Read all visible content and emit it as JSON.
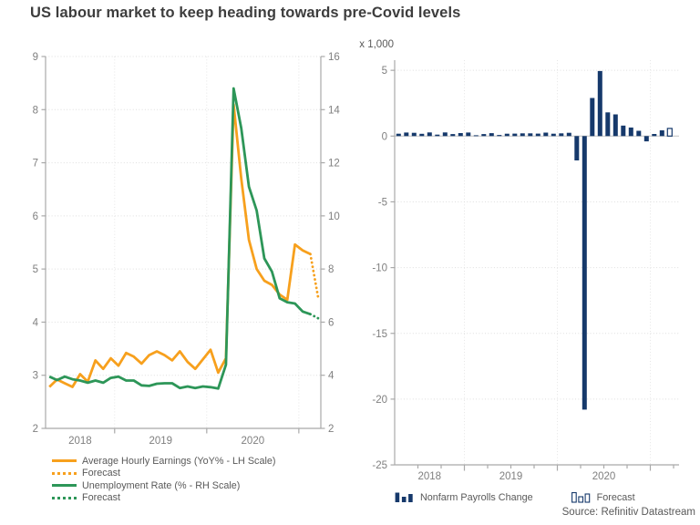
{
  "title": "US labour market to keep heading towards pre-Covid levels",
  "source_note": "Source: Refinitiv Datastream",
  "colors": {
    "orange": "#F7A01D",
    "green": "#2D9658",
    "navy": "#16396B",
    "axis": "#A9A9A9",
    "grid": "#DEDEDE",
    "tick_label": "#7F7F7F",
    "legend_text": "#595959",
    "title_text": "#3D3D3D"
  },
  "chart_data": [
    {
      "type": "line",
      "name": "earnings-unemployment-lines",
      "x_start": "2018-04",
      "x_months": 36,
      "x_year_labels": [
        "2018",
        "2019",
        "2020"
      ],
      "year_boundary_month_indices": [
        9,
        21,
        33
      ],
      "lh_axis": {
        "min": 2,
        "max": 9,
        "tick_labels": [
          "9",
          "8",
          "7",
          "6",
          "5",
          "4",
          "3",
          "2"
        ]
      },
      "rh_axis": {
        "min": 2,
        "max": 16,
        "tick_labels": [
          "16",
          "14",
          "12",
          "10",
          "8",
          "6",
          "4",
          "2"
        ]
      },
      "grid": true,
      "series": [
        {
          "name": "Average Hourly Earnings (YoY% - LH Scale)",
          "color": "orange",
          "style": "solid",
          "axis": "lh",
          "values": [
            2.78,
            2.92,
            2.85,
            2.78,
            3.02,
            2.88,
            3.28,
            3.12,
            3.32,
            3.18,
            3.42,
            3.35,
            3.22,
            3.38,
            3.45,
            3.38,
            3.28,
            3.45,
            3.25,
            3.12,
            3.3,
            3.48,
            3.05,
            3.32,
            8.1,
            6.7,
            5.55,
            5.0,
            4.78,
            4.7,
            4.52,
            4.42,
            5.46,
            5.35,
            5.28
          ]
        },
        {
          "name": "Forecast",
          "color": "orange",
          "style": "dotted",
          "axis": "lh",
          "start_index": 34,
          "values": [
            5.28,
            4.48
          ]
        },
        {
          "name": "Unemployment Rate (% - RH Scale)",
          "color": "green",
          "style": "solid",
          "axis": "rh",
          "values": [
            3.95,
            3.82,
            3.95,
            3.85,
            3.8,
            3.72,
            3.8,
            3.72,
            3.9,
            3.95,
            3.8,
            3.8,
            3.62,
            3.6,
            3.68,
            3.7,
            3.7,
            3.52,
            3.58,
            3.52,
            3.58,
            3.55,
            3.5,
            4.4,
            14.8,
            13.3,
            11.1,
            10.2,
            8.4,
            7.9,
            6.9,
            6.75,
            6.7,
            6.4,
            6.3
          ]
        },
        {
          "name": "Forecast",
          "color": "green",
          "style": "dotted",
          "axis": "rh",
          "start_index": 34,
          "values": [
            6.3,
            6.15
          ]
        }
      ],
      "legend": [
        {
          "label": "Average Hourly Earnings (YoY% - LH Scale)",
          "color": "orange",
          "style": "solid"
        },
        {
          "label": "Forecast",
          "color": "orange",
          "style": "dotted"
        },
        {
          "label": "Unemployment Rate (% - RH Scale)",
          "color": "green",
          "style": "solid"
        },
        {
          "label": "Forecast",
          "color": "green",
          "style": "dotted"
        }
      ]
    },
    {
      "type": "bar",
      "name": "nonfarm-payrolls-bars",
      "unit_label": "x 1,000",
      "x_start": "2018-04",
      "x_months": 36,
      "x_year_labels": [
        "2018",
        "2019",
        "2020"
      ],
      "year_boundary_month_indices": [
        9,
        21,
        33
      ],
      "y_axis": {
        "min": -25,
        "max": 5,
        "tick_step": 5,
        "tick_labels": [
          "5",
          "0",
          "-5",
          "-10",
          "-15",
          "-20",
          "-25"
        ]
      },
      "values": [
        0.18,
        0.27,
        0.25,
        0.17,
        0.28,
        0.11,
        0.28,
        0.15,
        0.23,
        0.27,
        0.06,
        0.15,
        0.22,
        0.08,
        0.18,
        0.19,
        0.21,
        0.21,
        0.19,
        0.26,
        0.18,
        0.21,
        0.25,
        -1.85,
        -20.8,
        2.9,
        4.95,
        1.8,
        1.65,
        0.8,
        0.65,
        0.4,
        -0.4,
        0.16,
        0.44
      ],
      "forecast": {
        "month_index": 35,
        "value": 0.58
      },
      "legend": [
        {
          "label": "Nonfarm Payrolls Change",
          "swatch": "bars-filled"
        },
        {
          "label": "Forecast",
          "swatch": "bars-outlined"
        }
      ]
    }
  ]
}
